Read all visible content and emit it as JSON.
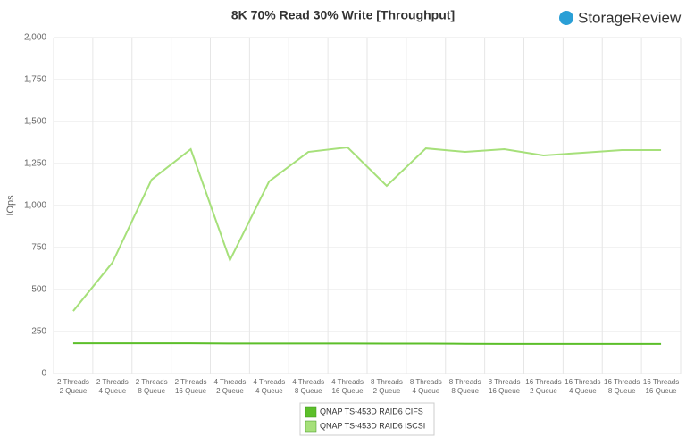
{
  "logo": "StorageReview",
  "chart_data": {
    "type": "line",
    "title": "8K 70% Read 30% Write [Throughput]",
    "y_label": "IOps",
    "categories": [
      "2 Threads\n2 Queue",
      "2 Threads\n4 Queue",
      "2 Threads\n8 Queue",
      "2 Threads\n16 Queue",
      "4 Threads\n2 Queue",
      "4 Threads\n4 Queue",
      "4 Threads\n8 Queue",
      "4 Threads\n16 Queue",
      "8 Threads\n2 Queue",
      "8 Threads\n4 Queue",
      "8 Threads\n8 Queue",
      "8 Threads\n16 Queue",
      "16 Threads\n2 Queue",
      "16 Threads\n4 Queue",
      "16 Threads\n8 Queue",
      "16 Threads\n16 Queue"
    ],
    "series": [
      {
        "name": "QNAP TS-453D RAID6 CIFS",
        "color": "#5cbf2a",
        "values": [
          180,
          180,
          180,
          180,
          179,
          179,
          179,
          179,
          178,
          178,
          177,
          176,
          176,
          176,
          176,
          176
        ]
      },
      {
        "name": "QNAP TS-453D RAID6 iSCSI",
        "color": "#a6e07a",
        "values": [
          372,
          660,
          1154,
          1335,
          675,
          1144,
          1319,
          1346,
          1117,
          1340,
          1319,
          1335,
          1298,
          1314,
          1330,
          1330
        ]
      }
    ],
    "ylim": [
      0,
      2000
    ],
    "yticks": [
      0,
      250,
      500,
      750,
      {
        "value": 1000,
        "label": "1,000"
      },
      {
        "value": 1250,
        "label": "1,250"
      },
      {
        "value": 1500,
        "label": "1,500"
      },
      {
        "value": 1750,
        "label": "1,750"
      },
      {
        "value": 2000,
        "label": "2,000"
      }
    ],
    "grid": true
  }
}
